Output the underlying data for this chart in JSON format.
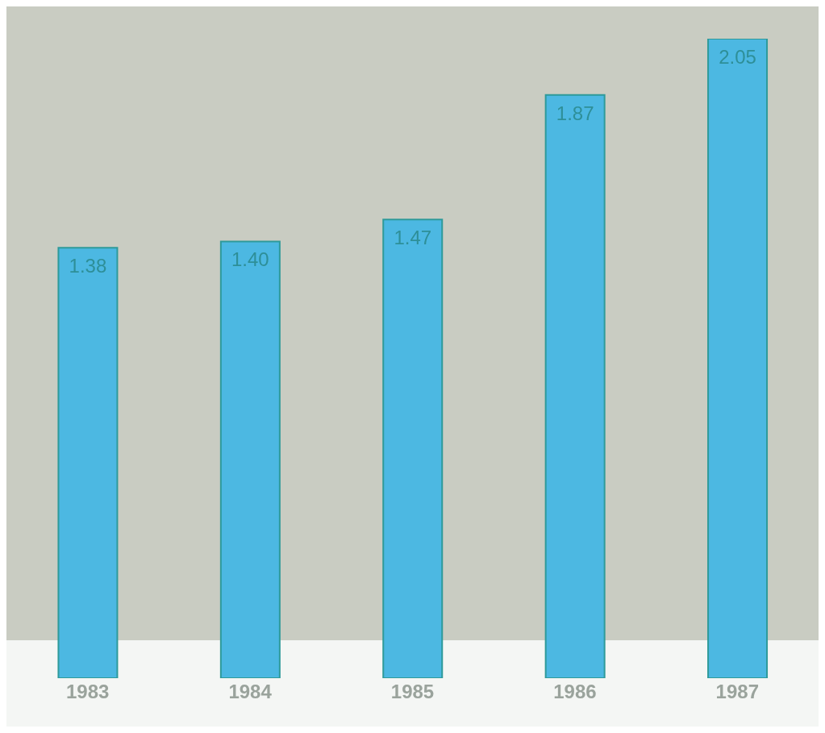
{
  "chart_data": {
    "type": "bar",
    "categories": [
      "1983",
      "1984",
      "1985",
      "1986",
      "1987"
    ],
    "values": [
      1.38,
      1.4,
      1.47,
      1.87,
      2.05
    ],
    "color": "#4cb8e2",
    "value_labels": [
      "1.38",
      "1.40",
      "1.47",
      "1.87",
      "2.05"
    ]
  }
}
